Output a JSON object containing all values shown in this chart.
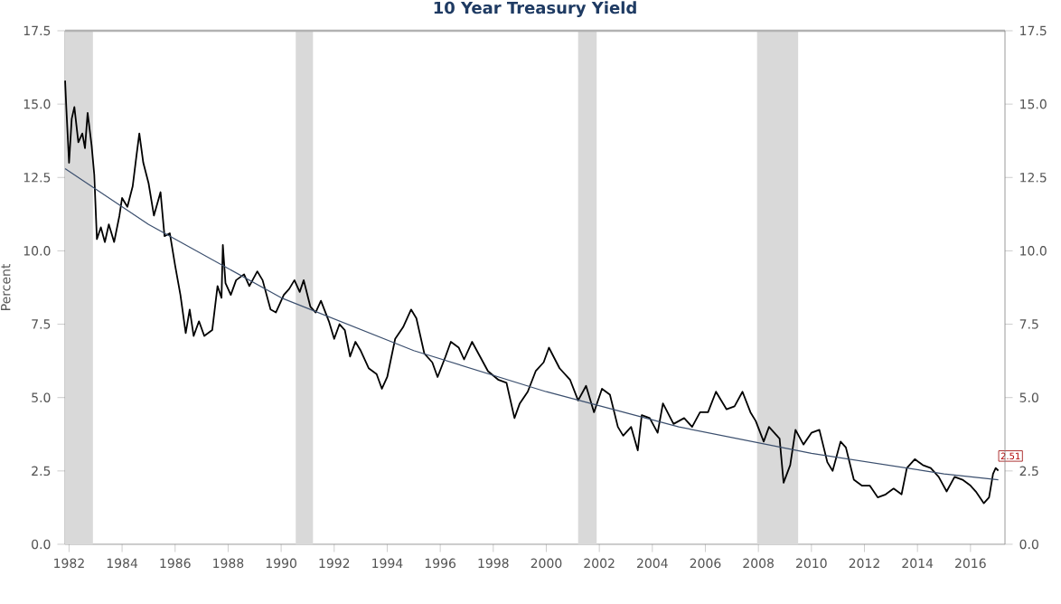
{
  "chart_data": {
    "type": "line",
    "title": "10 Year Treasury Yield",
    "ylabel": "Percent",
    "xlim": [
      1981.85,
      2017.3
    ],
    "xticks": [
      1982,
      1984,
      1986,
      1988,
      1990,
      1992,
      1994,
      1996,
      1998,
      2000,
      2002,
      2004,
      2006,
      2008,
      2010,
      2012,
      2014,
      2016
    ],
    "ylim": [
      0,
      17.5
    ],
    "yticks": [
      {
        "value": 0,
        "label": "0.0"
      },
      {
        "value": 2.5,
        "label": "2.5"
      },
      {
        "value": 5,
        "label": "5.0"
      },
      {
        "value": 7.5,
        "label": "7.5"
      },
      {
        "value": 10,
        "label": "10.0"
      },
      {
        "value": 12.5,
        "label": "12.5"
      },
      {
        "value": 15,
        "label": "15.0"
      },
      {
        "value": 17.5,
        "label": "17.5"
      }
    ],
    "y2lim": [
      0,
      17.5
    ],
    "y2ticks": [
      {
        "value": 0,
        "label": "0.0"
      },
      {
        "value": 2.5,
        "label": "2.5"
      },
      {
        "value": 5,
        "label": "5.0"
      },
      {
        "value": 7.5,
        "label": "7.5"
      },
      {
        "value": 10,
        "label": "10.0"
      },
      {
        "value": 12.5,
        "label": "12.5"
      },
      {
        "value": 15,
        "label": "15.0"
      },
      {
        "value": 17.5,
        "label": "17.5"
      }
    ],
    "grid": false,
    "marker": "none",
    "line_style": "solid",
    "bands": [
      {
        "axis": "x",
        "from": 1981.85,
        "to": 1982.9,
        "color": "#d9d9d9"
      },
      {
        "axis": "x",
        "from": 1990.55,
        "to": 1991.2,
        "color": "#d9d9d9"
      },
      {
        "axis": "x",
        "from": 2001.2,
        "to": 2001.9,
        "color": "#d9d9d9"
      },
      {
        "axis": "x",
        "from": 2007.95,
        "to": 2009.5,
        "color": "#d9d9d9"
      }
    ],
    "annotations": [
      {
        "text": "2.51",
        "x": 2017.05,
        "y": 2.51
      }
    ],
    "series": [
      {
        "color": "#000000",
        "x": [
          1981.85,
          1981.9,
          1982.0,
          1982.1,
          1982.2,
          1982.35,
          1982.5,
          1982.6,
          1982.7,
          1982.85,
          1982.95,
          1983.05,
          1983.2,
          1983.35,
          1983.5,
          1983.7,
          1983.9,
          1984.0,
          1984.2,
          1984.4,
          1984.55,
          1984.65,
          1984.8,
          1985.0,
          1985.2,
          1985.45,
          1985.6,
          1985.8,
          1986.0,
          1986.2,
          1986.4,
          1986.55,
          1986.7,
          1986.9,
          1987.1,
          1987.4,
          1987.6,
          1987.75,
          1987.8,
          1987.9,
          1988.1,
          1988.3,
          1988.6,
          1988.8,
          1989.1,
          1989.3,
          1989.6,
          1989.8,
          1990.1,
          1990.3,
          1990.5,
          1990.7,
          1990.85,
          1991.1,
          1991.3,
          1991.5,
          1991.8,
          1992.0,
          1992.2,
          1992.4,
          1992.6,
          1992.8,
          1993.0,
          1993.3,
          1993.6,
          1993.8,
          1994.0,
          1994.3,
          1994.6,
          1994.9,
          1995.1,
          1995.4,
          1995.7,
          1995.9,
          1996.2,
          1996.4,
          1996.7,
          1996.9,
          1997.2,
          1997.5,
          1997.8,
          1998.2,
          1998.5,
          1998.8,
          1999.0,
          1999.3,
          1999.6,
          1999.9,
          2000.1,
          2000.5,
          2000.9,
          2001.2,
          2001.5,
          2001.8,
          2002.1,
          2002.4,
          2002.7,
          2002.9,
          2003.2,
          2003.45,
          2003.6,
          2003.9,
          2004.2,
          2004.4,
          2004.8,
          2005.2,
          2005.5,
          2005.8,
          2006.1,
          2006.4,
          2006.8,
          2007.1,
          2007.4,
          2007.7,
          2007.9,
          2008.2,
          2008.4,
          2008.6,
          2008.8,
          2008.95,
          2009.2,
          2009.4,
          2009.7,
          2010.0,
          2010.3,
          2010.6,
          2010.8,
          2011.1,
          2011.3,
          2011.6,
          2011.9,
          2012.2,
          2012.5,
          2012.8,
          2013.1,
          2013.4,
          2013.6,
          2013.9,
          2014.2,
          2014.5,
          2014.8,
          2015.1,
          2015.4,
          2015.7,
          2016.0,
          2016.2,
          2016.5,
          2016.7,
          2016.85,
          2016.95,
          2017.05
        ],
        "values": [
          15.8,
          14.8,
          13.0,
          14.5,
          14.9,
          13.7,
          14.0,
          13.5,
          14.7,
          13.6,
          12.6,
          10.4,
          10.8,
          10.3,
          10.9,
          10.3,
          11.2,
          11.8,
          11.5,
          12.2,
          13.3,
          14.0,
          13.0,
          12.3,
          11.2,
          12.0,
          10.5,
          10.6,
          9.5,
          8.5,
          7.2,
          8.0,
          7.1,
          7.6,
          7.1,
          7.3,
          8.8,
          8.4,
          10.2,
          8.9,
          8.5,
          9.0,
          9.2,
          8.8,
          9.3,
          9.0,
          8.0,
          7.9,
          8.5,
          8.7,
          9.0,
          8.6,
          9.0,
          8.1,
          7.9,
          8.3,
          7.6,
          7.0,
          7.5,
          7.3,
          6.4,
          6.9,
          6.6,
          6.0,
          5.8,
          5.3,
          5.7,
          7.0,
          7.4,
          8.0,
          7.7,
          6.5,
          6.2,
          5.7,
          6.4,
          6.9,
          6.7,
          6.3,
          6.9,
          6.4,
          5.9,
          5.6,
          5.5,
          4.3,
          4.8,
          5.2,
          5.9,
          6.2,
          6.7,
          6.0,
          5.6,
          4.9,
          5.4,
          4.5,
          5.3,
          5.1,
          4.0,
          3.7,
          4.0,
          3.2,
          4.4,
          4.3,
          3.8,
          4.8,
          4.1,
          4.3,
          4.0,
          4.5,
          4.5,
          5.2,
          4.6,
          4.7,
          5.2,
          4.5,
          4.2,
          3.5,
          4.0,
          3.8,
          3.6,
          2.1,
          2.7,
          3.9,
          3.4,
          3.8,
          3.9,
          2.8,
          2.5,
          3.5,
          3.3,
          2.2,
          2.0,
          2.0,
          1.6,
          1.7,
          1.9,
          1.7,
          2.6,
          2.9,
          2.7,
          2.6,
          2.3,
          1.8,
          2.3,
          2.2,
          2.0,
          1.8,
          1.4,
          1.6,
          2.4,
          2.6,
          2.51
        ]
      },
      {
        "color": "#3b4f6e",
        "x": [
          1981.85,
          1985,
          1990,
          1995,
          2000,
          2005,
          2010,
          2015,
          2017.05
        ],
        "values": [
          12.8,
          10.9,
          8.4,
          6.6,
          5.2,
          4.0,
          3.1,
          2.4,
          2.2
        ]
      }
    ]
  }
}
